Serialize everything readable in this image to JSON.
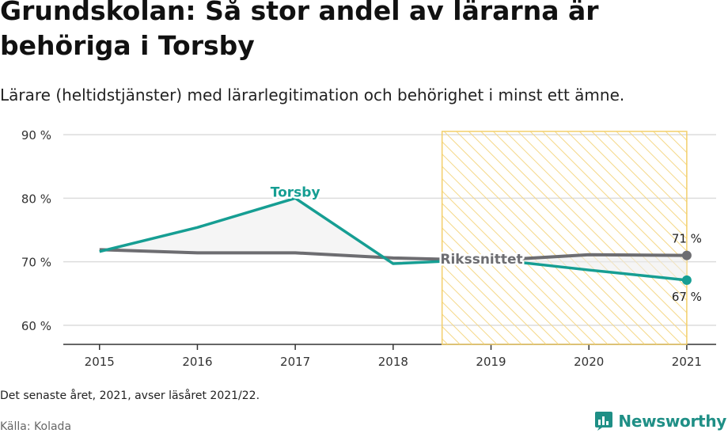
{
  "title": "Grundskolan: Så stor andel av lärarna är behöriga i Torsby",
  "subtitle": "Lärare (heltidstjänster) med lärarlegitimation och behörighet i minst ett ämne.",
  "note": "Det senaste året, 2021, avser läsåret 2021/22.",
  "source": "Källa: Kolada",
  "brand": "Newsworthy",
  "colors": {
    "torsby": "#169e93",
    "riket": "#6d6d71",
    "highlight_stroke": "#f3cf6a",
    "fill_between": "#ececec"
  },
  "chart_data": {
    "type": "line",
    "x": [
      2015,
      2016,
      2017,
      2018,
      2019,
      2020,
      2021
    ],
    "y_ticks": [
      60,
      70,
      80,
      90
    ],
    "y_tick_labels": [
      "60 %",
      "70 %",
      "80 %",
      "90 %"
    ],
    "ylim": [
      57.0,
      92.5
    ],
    "xlim": [
      2014.63,
      2021.3
    ],
    "series": [
      {
        "name": "Torsby",
        "values": [
          71.6,
          75.4,
          80.0,
          69.7,
          70.4,
          68.7,
          67.1
        ],
        "end_label": "67 %"
      },
      {
        "name": "Rikssnittet",
        "values": [
          71.9,
          71.4,
          71.4,
          70.6,
          70.2,
          71.1,
          71.0
        ],
        "end_label": "71 %"
      }
    ],
    "highlight_range": [
      2018.5,
      2021
    ],
    "grid": true
  }
}
